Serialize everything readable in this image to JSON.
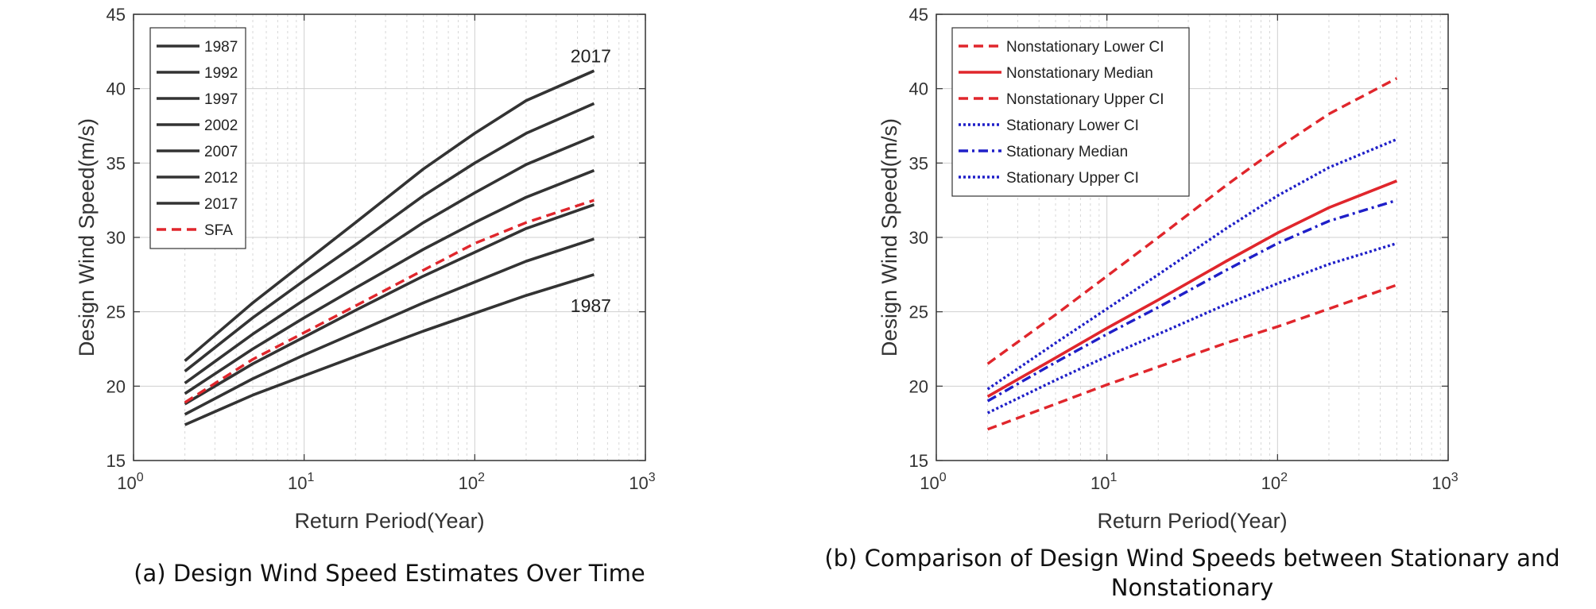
{
  "chart_data": [
    {
      "type": "line",
      "xscale": "log",
      "xlabel": "Return Period(Year)",
      "ylabel": "Design Wind Speed(m/s)",
      "xlim": [
        1,
        1000
      ],
      "ylim": [
        15,
        45
      ],
      "ytick_labels": [
        "15",
        "20",
        "25",
        "30",
        "35",
        "40",
        "45"
      ],
      "xtick_labels": [
        {
          "base": "10",
          "exp": "0"
        },
        {
          "base": "10",
          "exp": "1"
        },
        {
          "base": "10",
          "exp": "2"
        },
        {
          "base": "10",
          "exp": "3"
        }
      ],
      "grid": true,
      "legend_position": "top-left",
      "caption": "(a) Design Wind Speed Estimates Over Time",
      "annotations": [
        {
          "text": "2017",
          "x": 500,
          "y": 42.2
        },
        {
          "text": "1987",
          "x": 500,
          "y": 25.4
        }
      ],
      "x": [
        2,
        5,
        10,
        20,
        50,
        100,
        200,
        500
      ],
      "series": [
        {
          "name": "1987",
          "color": "#333333",
          "style": "solid",
          "values": [
            17.4,
            19.4,
            20.7,
            22.0,
            23.7,
            24.9,
            26.1,
            27.5
          ]
        },
        {
          "name": "1992",
          "color": "#333333",
          "style": "solid",
          "values": [
            18.1,
            20.5,
            22.1,
            23.6,
            25.6,
            27.0,
            28.4,
            29.9
          ]
        },
        {
          "name": "1997",
          "color": "#333333",
          "style": "solid",
          "values": [
            18.8,
            21.5,
            23.3,
            25.1,
            27.4,
            29.0,
            30.6,
            32.2
          ]
        },
        {
          "name": "2002",
          "color": "#333333",
          "style": "solid",
          "values": [
            19.5,
            22.5,
            24.6,
            26.6,
            29.2,
            31.0,
            32.7,
            34.5
          ]
        },
        {
          "name": "2007",
          "color": "#333333",
          "style": "solid",
          "values": [
            20.2,
            23.5,
            25.8,
            28.0,
            31.0,
            33.0,
            34.9,
            36.8
          ]
        },
        {
          "name": "2012",
          "color": "#333333",
          "style": "solid",
          "values": [
            21.0,
            24.6,
            27.1,
            29.5,
            32.8,
            35.0,
            37.0,
            39.0
          ]
        },
        {
          "name": "2017",
          "color": "#333333",
          "style": "solid",
          "values": [
            21.7,
            25.6,
            28.3,
            31.0,
            34.6,
            37.0,
            39.2,
            41.2
          ]
        },
        {
          "name": "SFA",
          "color": "#e0262c",
          "style": "dashed",
          "values": [
            18.9,
            21.8,
            23.6,
            25.4,
            27.8,
            29.6,
            31.0,
            32.5
          ]
        }
      ]
    },
    {
      "type": "line",
      "xscale": "log",
      "xlabel": "Return Period(Year)",
      "ylabel": "Design Wind Speed(m/s)",
      "xlim": [
        1,
        1000
      ],
      "ylim": [
        15,
        45
      ],
      "ytick_labels": [
        "15",
        "20",
        "25",
        "30",
        "35",
        "40",
        "45"
      ],
      "xtick_labels": [
        {
          "base": "10",
          "exp": "0"
        },
        {
          "base": "10",
          "exp": "1"
        },
        {
          "base": "10",
          "exp": "2"
        },
        {
          "base": "10",
          "exp": "3"
        }
      ],
      "grid": true,
      "legend_position": "top-left",
      "caption_lines": [
        "(b) Comparison of Design Wind Speeds between Stationary and",
        "Nonstationary"
      ],
      "x": [
        2,
        5,
        10,
        20,
        50,
        100,
        200,
        500
      ],
      "series": [
        {
          "name": "Nonstationary Lower CI",
          "color": "#e0262c",
          "style": "dashed",
          "values": [
            17.1,
            18.8,
            20.1,
            21.3,
            22.9,
            24.0,
            25.2,
            26.8
          ]
        },
        {
          "name": "Nonstationary Median",
          "color": "#e0262c",
          "style": "solid",
          "values": [
            19.3,
            21.9,
            23.9,
            25.8,
            28.4,
            30.3,
            32.0,
            33.8
          ]
        },
        {
          "name": "Nonstationary Upper CI",
          "color": "#e0262c",
          "style": "dashed",
          "values": [
            21.5,
            24.8,
            27.4,
            30.0,
            33.5,
            36.0,
            38.3,
            40.7
          ]
        },
        {
          "name": "Stationary Lower CI",
          "color": "#1f1fc8",
          "style": "dotted",
          "values": [
            18.2,
            20.4,
            22.0,
            23.5,
            25.5,
            26.9,
            28.2,
            29.6
          ]
        },
        {
          "name": "Stationary Median",
          "color": "#1f1fc8",
          "style": "dashdot",
          "values": [
            19.0,
            21.6,
            23.5,
            25.3,
            27.8,
            29.6,
            31.1,
            32.5
          ]
        },
        {
          "name": "Stationary Upper CI",
          "color": "#1f1fc8",
          "style": "dotted",
          "values": [
            19.8,
            22.9,
            25.2,
            27.5,
            30.6,
            32.8,
            34.7,
            36.6
          ]
        }
      ]
    }
  ]
}
